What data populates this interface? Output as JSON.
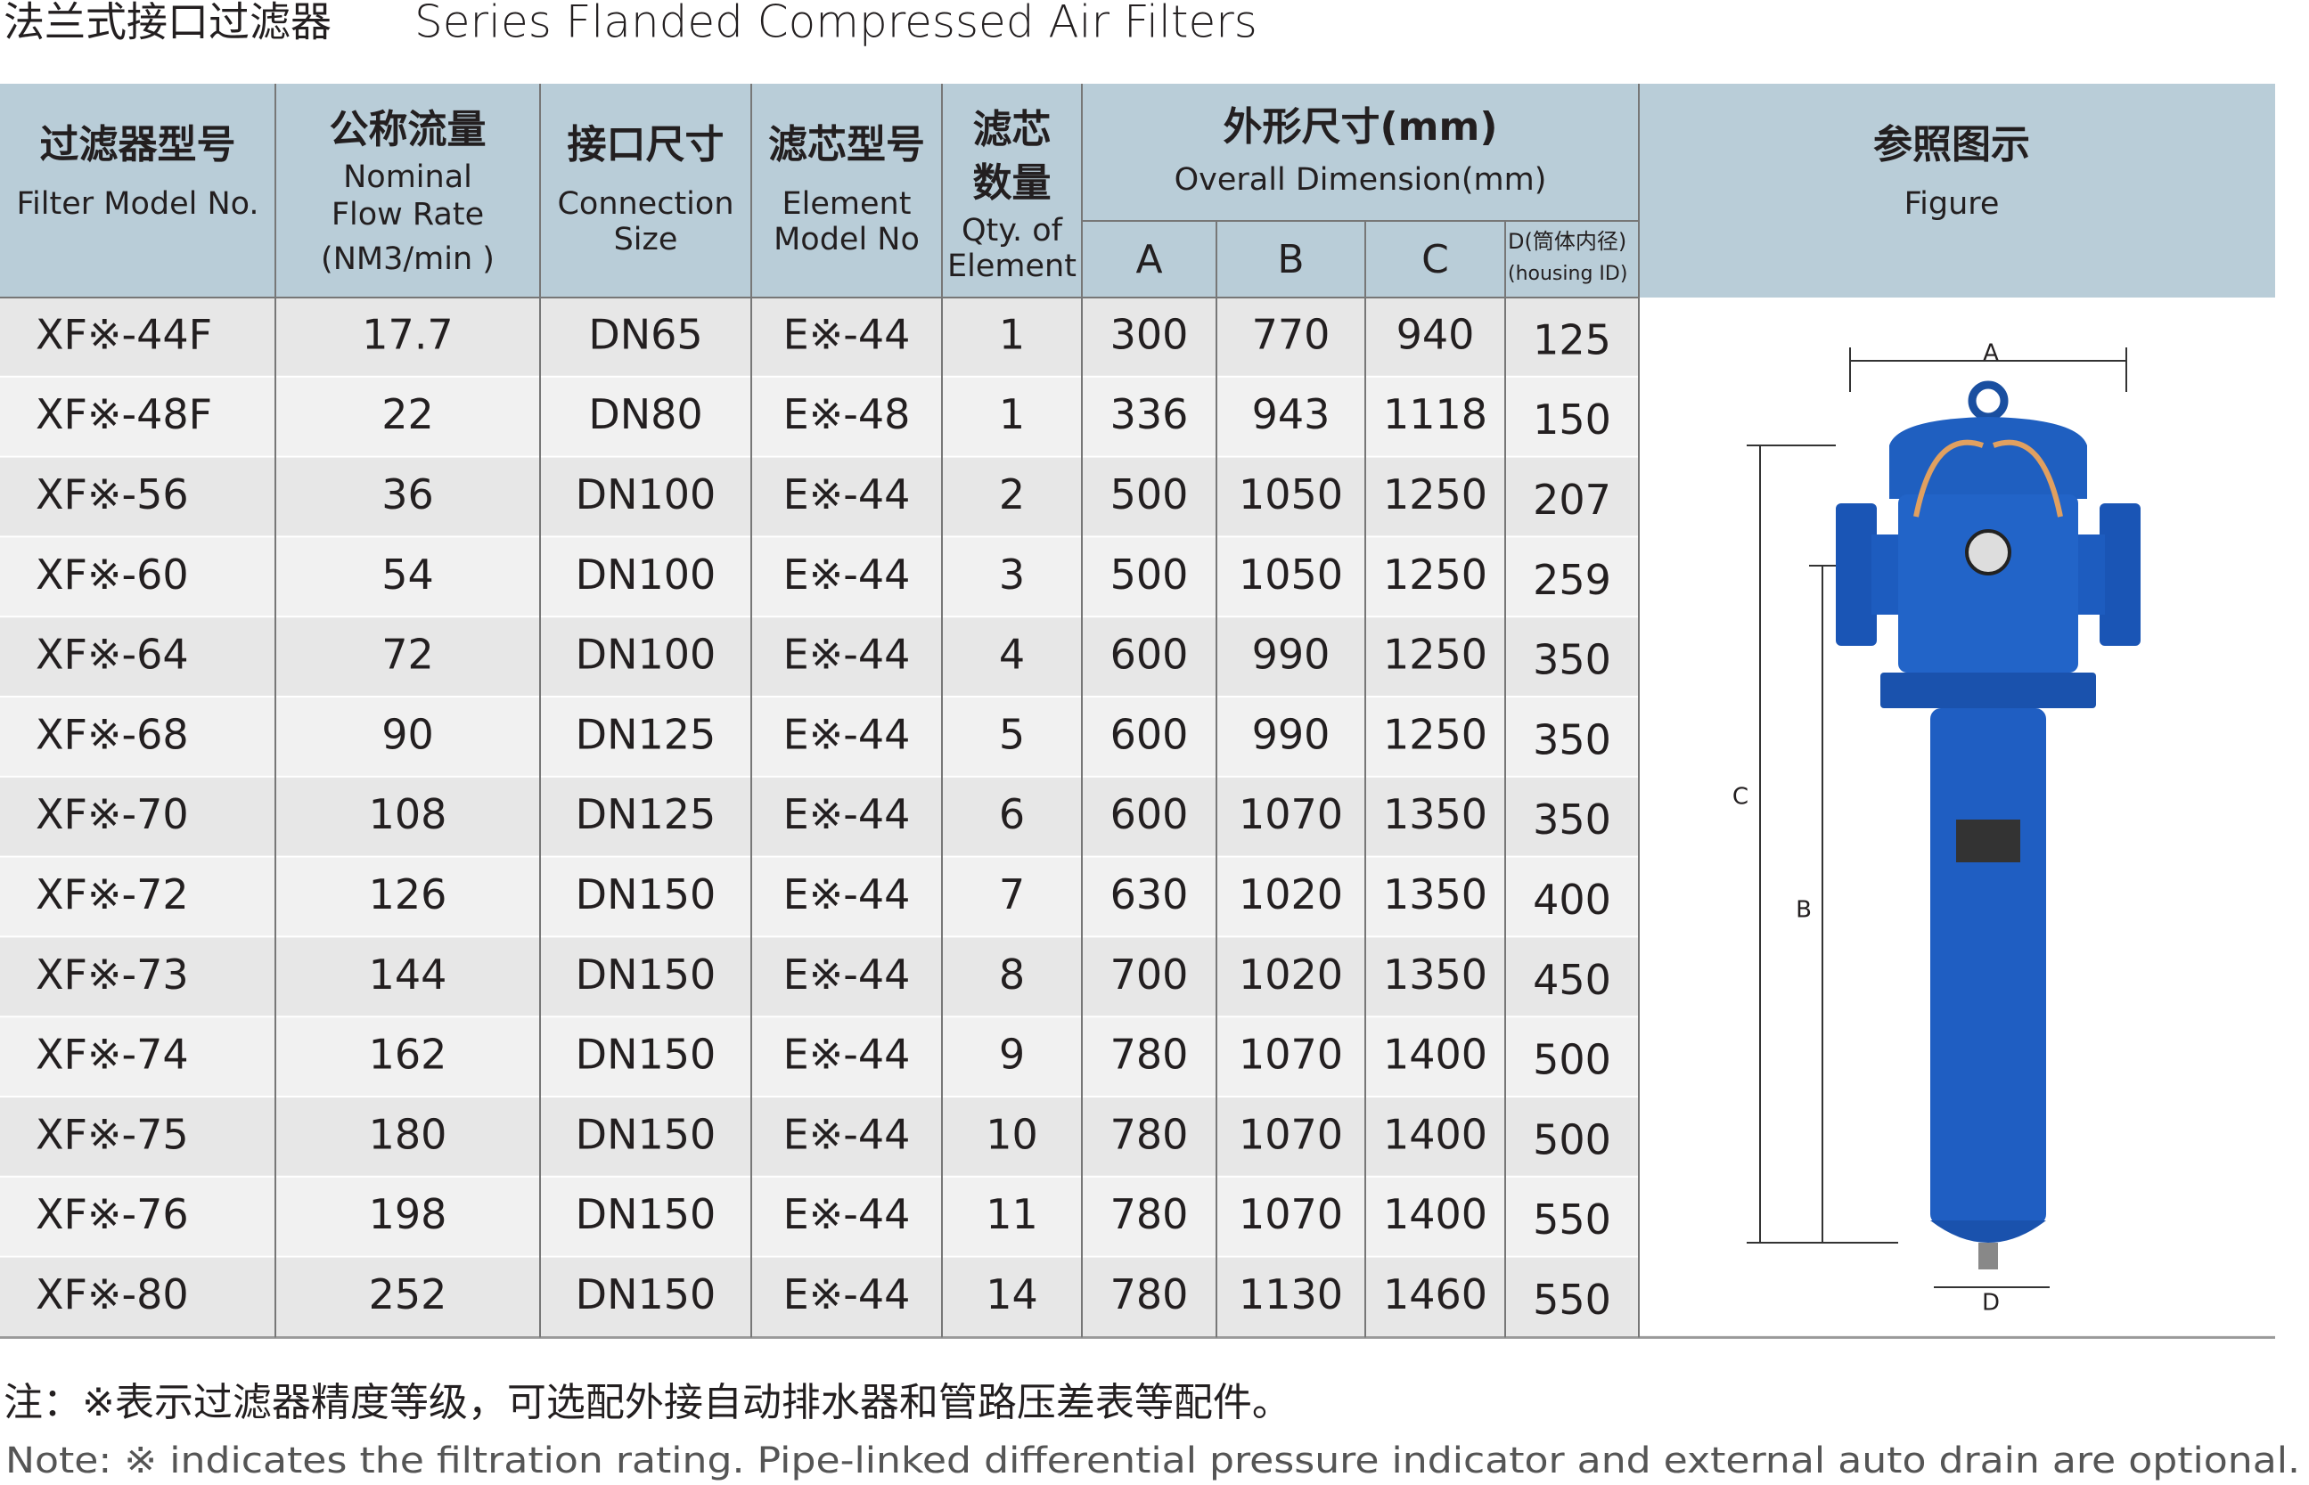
{
  "header": {
    "title_zh": "法兰式接口过滤器",
    "title_en": "Series Flanded Compressed Air Filters"
  },
  "table": {
    "columns": [
      {
        "lines": [
          "过滤器型号",
          "Filter Model No."
        ]
      },
      {
        "lines": [
          "公称流量",
          "Nominal",
          "Flow Rate",
          "(NM3/min )"
        ]
      },
      {
        "lines": [
          "接口尺寸",
          "Connection",
          "Size"
        ]
      },
      {
        "lines": [
          "滤芯型号",
          "Element",
          "Model No"
        ]
      },
      {
        "lines": [
          "滤芯",
          "数量",
          "Qty. of",
          "Element"
        ]
      }
    ],
    "dimension_group": {
      "lines": [
        "外形尺寸(mm)",
        "Overall Dimension(mm)"
      ]
    },
    "dimension_columns": [
      {
        "lines": [
          "A"
        ]
      },
      {
        "lines": [
          "B"
        ]
      },
      {
        "lines": [
          "C"
        ]
      },
      {
        "lines": [
          "D(筒体内径)",
          "(housing ID)"
        ]
      }
    ],
    "figure_column": {
      "lines": [
        "参照图示",
        "Figure"
      ]
    },
    "rows": [
      [
        "XF※-44F",
        "17.7",
        "DN65",
        "E※-44",
        "1",
        "300",
        "770",
        "940",
        "125"
      ],
      [
        "XF※-48F",
        "22",
        "DN80",
        "E※-48",
        "1",
        "336",
        "943",
        "1118",
        "150"
      ],
      [
        "XF※-56",
        "36",
        "DN100",
        "E※-44",
        "2",
        "500",
        "1050",
        "1250",
        "207"
      ],
      [
        "XF※-60",
        "54",
        "DN100",
        "E※-44",
        "3",
        "500",
        "1050",
        "1250",
        "259"
      ],
      [
        "XF※-64",
        "72",
        "DN100",
        "E※-44",
        "4",
        "600",
        "990",
        "1250",
        "350"
      ],
      [
        "XF※-68",
        "90",
        "DN125",
        "E※-44",
        "5",
        "600",
        "990",
        "1250",
        "350"
      ],
      [
        "XF※-70",
        "108",
        "DN125",
        "E※-44",
        "6",
        "600",
        "1070",
        "1350",
        "350"
      ],
      [
        "XF※-72",
        "126",
        "DN150",
        "E※-44",
        "7",
        "630",
        "1020",
        "1350",
        "400"
      ],
      [
        "XF※-73",
        "144",
        "DN150",
        "E※-44",
        "8",
        "700",
        "1020",
        "1350",
        "450"
      ],
      [
        "XF※-74",
        "162",
        "DN150",
        "E※-44",
        "9",
        "780",
        "1070",
        "1400",
        "500"
      ],
      [
        "XF※-75",
        "180",
        "DN150",
        "E※-44",
        "10",
        "780",
        "1070",
        "1400",
        "500"
      ],
      [
        "XF※-76",
        "198",
        "DN150",
        "E※-44",
        "11",
        "780",
        "1070",
        "1400",
        "550"
      ],
      [
        "XF※-80",
        "252",
        "DN150",
        "E※-44",
        "14",
        "780",
        "1130",
        "1460",
        "550"
      ]
    ]
  },
  "figure": {
    "labels": [
      "A",
      "B",
      "C",
      "D"
    ]
  },
  "notes": [
    "注：※表示过滤器精度等级，可选配外接自动排水器和管路压差表等配件。",
    "Note: ※ indicates the filtration rating. Pipe-linked differential pressure indicator and external auto drain are optional."
  ]
}
